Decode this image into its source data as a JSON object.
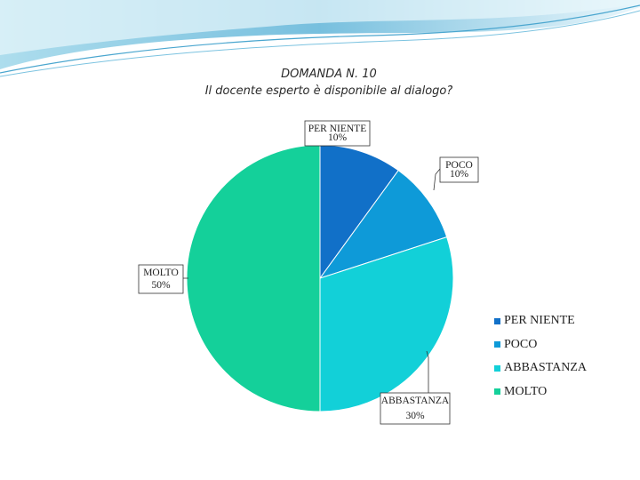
{
  "chart_data": {
    "type": "pie",
    "title": "DOMANDA N. 10",
    "subtitle": "Il docente esperto è disponibile al dialogo?",
    "categories": [
      "PER NIENTE",
      "POCO",
      "ABBASTANZA",
      "MOLTO"
    ],
    "values": [
      10,
      10,
      30,
      50
    ],
    "value_labels": [
      "10%",
      "10%",
      "30%",
      "50%"
    ],
    "colors": [
      "#1170c8",
      "#0e9ad8",
      "#12d0d8",
      "#14d09a"
    ],
    "legend_position": "right"
  },
  "decor": {
    "wave_colors": [
      "#5fb4d8",
      "#a9dcee",
      "#e3f3fa"
    ]
  }
}
